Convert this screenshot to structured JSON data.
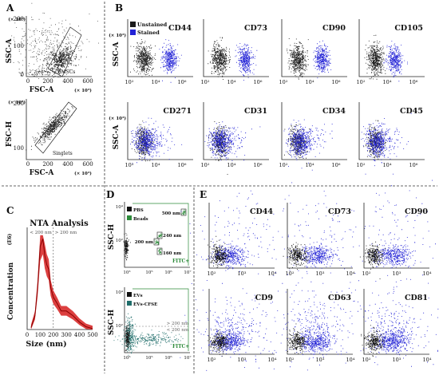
{
  "panels": {
    "A": {
      "letter": "A",
      "top": {
        "ylabel": "SSC-A",
        "yunit": "(× 10³)",
        "xlabel": "FSC-A",
        "xunit": "(× 10³)",
        "yticks": [
          "0",
          "100",
          "200"
        ],
        "xticks": [
          "0",
          "200",
          "400",
          "600"
        ],
        "gate_label": "BMSCs"
      },
      "bottom": {
        "ylabel": "FSC-H",
        "yunit": "(× 10³)",
        "xlabel": "FSC-A",
        "xunit": "(× 10³)",
        "yticks": [
          "100",
          "200"
        ],
        "xticks": [
          "0",
          "200",
          "400",
          "600"
        ],
        "gate_label": "Singlets"
      }
    },
    "B": {
      "letter": "B",
      "ylabel": "SSC-A",
      "yunit": "(× 10³)",
      "xticks": [
        "10²",
        "10⁴",
        "10⁶"
      ],
      "legend": [
        "Unstained",
        "Stained"
      ],
      "rows": [
        [
          "CD44",
          "CD73",
          "CD90",
          "CD105"
        ],
        [
          "CD271",
          "CD31",
          "CD34",
          "CD45"
        ]
      ]
    },
    "C": {
      "letter": "C",
      "title": "NTA Analysis",
      "ylabel": "Concentration",
      "yunit": "(E6)",
      "xlabel": "Size (nm)",
      "xticks": [
        "0",
        "100",
        "200",
        "300",
        "400",
        "500"
      ],
      "region_left": "< 200 nm",
      "region_right": "> 200 nm"
    },
    "D": {
      "letter": "D",
      "ylabel": "SSC-H",
      "top": {
        "legend": [
          "PBS",
          "Beads"
        ],
        "bead_labels": [
          "500 nm",
          "240 nm",
          "200 nm",
          "160 nm"
        ],
        "fitc": "FITC+",
        "yticks": [
          "10²",
          "10⁴"
        ],
        "xticks": [
          "10³",
          "10⁵",
          "10⁶",
          "10⁷"
        ]
      },
      "bottom": {
        "legend": [
          "EVs",
          "EVs-CFSE"
        ],
        "size_gt": "> 200 nm",
        "size_lt": "< 200 nm",
        "fitc": "FITC+",
        "yticks": [
          "10²",
          "10⁴"
        ],
        "xticks": [
          "10³",
          "10⁵",
          "10⁶",
          "10⁷"
        ]
      }
    },
    "E": {
      "letter": "E",
      "xticks": [
        "10²",
        "10³",
        "10⁴"
      ],
      "rows": [
        [
          "CD44",
          "CD73",
          "CD90"
        ],
        [
          "CD9",
          "CD63",
          "CD81"
        ]
      ]
    }
  },
  "chart_data": [
    {
      "type": "line",
      "title": "NTA Analysis",
      "xlabel": "Size (nm)",
      "ylabel": "Concentration (E6)",
      "xlim": [
        0,
        500
      ],
      "x": [
        30,
        60,
        80,
        100,
        120,
        135,
        150,
        165,
        180,
        200,
        230,
        260,
        300,
        350,
        400,
        450,
        500
      ],
      "y": [
        0.02,
        0.15,
        0.45,
        0.9,
        0.98,
        0.8,
        0.7,
        0.65,
        0.45,
        0.35,
        0.28,
        0.2,
        0.2,
        0.15,
        0.08,
        0.03,
        0.01
      ]
    }
  ],
  "colors": {
    "unstained": "#1a1a1a",
    "stained": "#2323d6",
    "nta": "#d61f1f",
    "beads": "#2d8a3a",
    "evs_cfse": "#1f6d6a",
    "text": "#111111"
  }
}
